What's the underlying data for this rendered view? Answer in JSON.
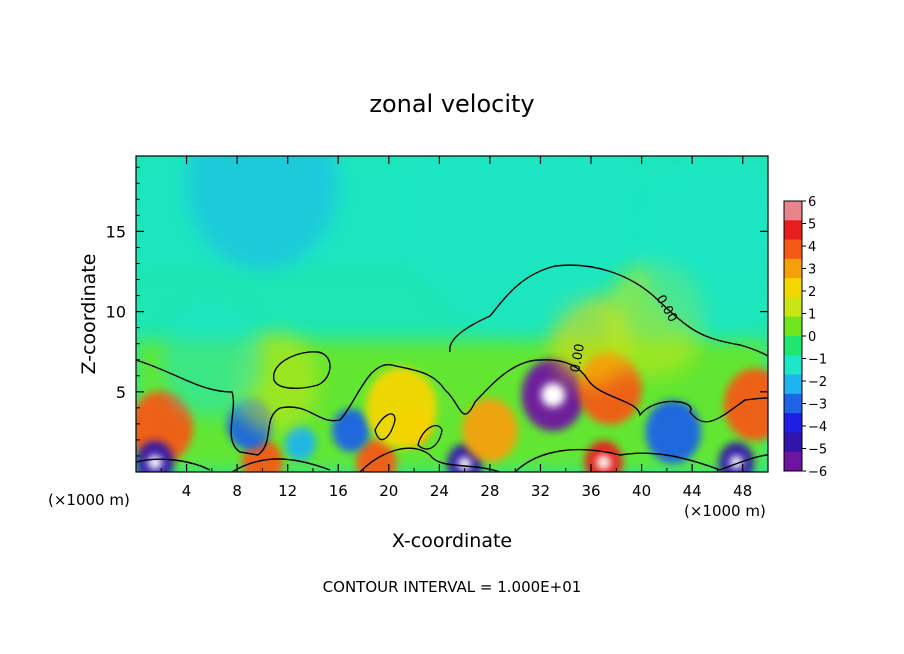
{
  "chart_data": {
    "type": "heatmap",
    "title": "zonal velocity",
    "xlabel": "X-coordinate",
    "ylabel": "Z-coordinate",
    "x_unit_left": "(×1000 m)",
    "x_unit_right": "(×1000 m)",
    "xlim": [
      0,
      50
    ],
    "ylim": [
      0,
      19.7
    ],
    "xticks": [
      "4",
      "8",
      "12",
      "16",
      "20",
      "24",
      "28",
      "32",
      "36",
      "40",
      "44",
      "48"
    ],
    "yticks": [
      "5",
      "10",
      "15"
    ],
    "colorbar": {
      "min": -6,
      "max": 6,
      "labels": [
        "6",
        "5",
        "4",
        "3",
        "2",
        "1",
        "0",
        "−1",
        "−2",
        "−3",
        "−4",
        "−5",
        "−6"
      ],
      "colors": [
        "#e8858a",
        "#e81e1e",
        "#f55a14",
        "#f5a00a",
        "#f5d700",
        "#c8e614",
        "#6ee61e",
        "#1ee66e",
        "#1ee6c8",
        "#1eb4f0",
        "#1e64e6",
        "#1e1ee6",
        "#3214aa",
        "#6e14a0"
      ]
    },
    "contour_label": "0.00",
    "footer": "CONTOUR INTERVAL = 1.000E+01",
    "features": [
      {
        "x": 33,
        "z": 4.8,
        "value": -6,
        "r": 2.5
      },
      {
        "x": 37.5,
        "z": 5.2,
        "value": 4,
        "r": 2.5
      },
      {
        "x": 2,
        "z": 2.8,
        "value": 4,
        "r": 2.5
      },
      {
        "x": 49,
        "z": 4.2,
        "value": 4,
        "r": 2.5
      },
      {
        "x": 42.5,
        "z": 2.5,
        "value": -3,
        "r": 2.2
      },
      {
        "x": 10,
        "z": 0.6,
        "value": 4,
        "r": 1.6
      },
      {
        "x": 19,
        "z": 0.6,
        "value": 4,
        "r": 1.6
      },
      {
        "x": 1.5,
        "z": 0.6,
        "value": -5,
        "r": 1.5
      },
      {
        "x": 26,
        "z": 0.5,
        "value": -5,
        "r": 1.4
      },
      {
        "x": 37,
        "z": 0.6,
        "value": 5,
        "r": 1.5
      },
      {
        "x": 47.5,
        "z": 0.6,
        "value": -5,
        "r": 1.4
      },
      {
        "x": 9,
        "z": 3,
        "value": -3,
        "r": 1.8
      },
      {
        "x": 17,
        "z": 2.6,
        "value": -3,
        "r": 1.5
      },
      {
        "x": 28,
        "z": 2.6,
        "value": 3,
        "r": 2.2
      },
      {
        "x": 22,
        "z": 2.8,
        "value": 3,
        "r": 1.3
      },
      {
        "x": 13,
        "z": 1.8,
        "value": -2,
        "r": 1.2
      },
      {
        "x": 36,
        "z": 8.2,
        "value": 2,
        "r": 3.2
      },
      {
        "x": 21,
        "z": 4,
        "value": 2,
        "r": 2.8
      },
      {
        "x": 11,
        "z": 5.6,
        "value": 1,
        "r": 3.5
      },
      {
        "x": 41,
        "z": 9.5,
        "value": 1,
        "r": 4
      },
      {
        "x": 10,
        "z": 18,
        "value": -2,
        "r": 6
      },
      {
        "x": 30,
        "z": 17,
        "value": -1,
        "r": 9
      },
      {
        "x": 6,
        "z": 7,
        "value": -1,
        "r": 4
      },
      {
        "x": 46,
        "z": 14,
        "value": -1,
        "r": 6
      }
    ]
  }
}
